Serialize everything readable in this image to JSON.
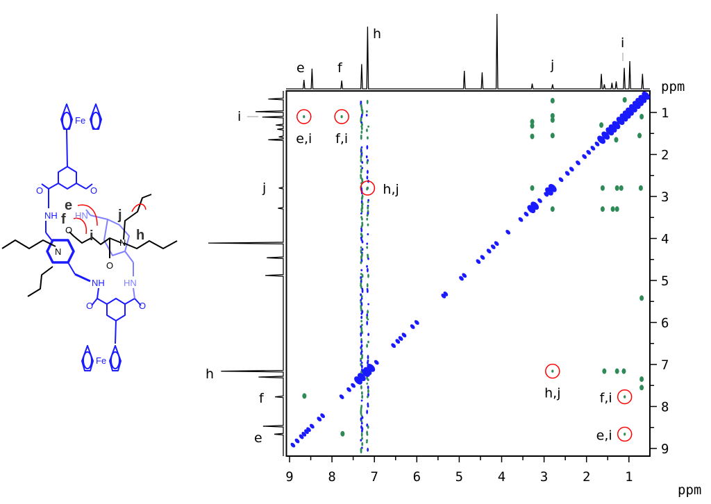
{
  "molecule": {
    "atoms": {
      "fe_top": "Fe",
      "fe_bottom": "Fe",
      "nh_left": "NH",
      "hn_mid": "HN",
      "nh_bottom": "NH",
      "hn_bottom": "HN",
      "n_pyr": "N",
      "n_right": "N",
      "o": "O"
    },
    "proton_labels": {
      "e": "e",
      "f": "f",
      "i": "i",
      "j": "j",
      "h": "h"
    },
    "colors": {
      "host": "#1a1aff",
      "host_light": "#8080ff",
      "guest": "#000000",
      "noe_arrow": "#ff0000"
    }
  },
  "chart_data": {
    "type": "heatmap",
    "subtype": "2D NMR (NOESY) contour plot",
    "x_axis": {
      "unit_label": "ppm",
      "range": [
        9.07,
        0.51
      ],
      "ticks": [
        9,
        8,
        7,
        6,
        5,
        4,
        3,
        2,
        1
      ],
      "reversed": true
    },
    "y_axis": {
      "unit_label": "ppm",
      "range": [
        0.49,
        9.15
      ],
      "ticks": [
        1,
        2,
        3,
        4,
        5,
        6,
        7,
        8,
        9
      ],
      "position": "right"
    },
    "grid": false,
    "colors": {
      "diagonal": "#1a1aff",
      "cross_peak": "#2e8b57",
      "annotation": "#ff0000",
      "spectrum": "#000000"
    },
    "projection_1d": {
      "peaks": [
        {
          "ppm": 8.66,
          "intensity": 0.12,
          "label": "e"
        },
        {
          "ppm": 8.47,
          "intensity": 0.27,
          "label": ""
        },
        {
          "ppm": 7.77,
          "intensity": 0.11,
          "label": "f"
        },
        {
          "ppm": 7.3,
          "intensity": 0.33,
          "label": ""
        },
        {
          "ppm": 7.16,
          "intensity": 0.83,
          "label": "h"
        },
        {
          "ppm": 4.88,
          "intensity": 0.24,
          "label": ""
        },
        {
          "ppm": 4.46,
          "intensity": 0.22,
          "label": ""
        },
        {
          "ppm": 4.11,
          "intensity": 1.0,
          "label": ""
        },
        {
          "ppm": 3.28,
          "intensity": 0.07,
          "label": ""
        },
        {
          "ppm": 2.8,
          "intensity": 0.06,
          "label": "j"
        },
        {
          "ppm": 1.65,
          "intensity": 0.2,
          "label": ""
        },
        {
          "ppm": 1.58,
          "intensity": 0.06,
          "label": ""
        },
        {
          "ppm": 1.4,
          "intensity": 0.08,
          "label": ""
        },
        {
          "ppm": 1.3,
          "intensity": 0.1,
          "label": ""
        },
        {
          "ppm": 1.11,
          "intensity": 0.28,
          "label": "i"
        },
        {
          "ppm": 0.98,
          "intensity": 0.37,
          "label": ""
        },
        {
          "ppm": 0.68,
          "intensity": 0.2,
          "label": ""
        }
      ]
    },
    "diagonal_peaks_ppm": [
      8.92,
      8.82,
      8.72,
      8.66,
      8.6,
      8.55,
      8.47,
      8.3,
      8.22,
      7.77,
      7.6,
      7.5,
      7.38,
      7.3,
      7.2,
      7.16,
      7.08,
      6.95,
      6.55,
      6.45,
      6.38,
      6.3,
      6.1,
      6.0,
      5.37,
      5.32,
      4.95,
      4.88,
      4.55,
      4.45,
      4.3,
      4.2,
      4.12,
      3.85,
      3.55,
      3.42,
      3.3,
      3.22,
      3.1,
      2.95,
      2.88,
      2.8,
      2.6,
      2.45,
      2.35,
      2.2,
      2.05,
      1.95,
      1.85,
      1.75,
      1.65,
      1.55,
      1.45,
      1.38,
      1.3,
      1.2,
      1.12,
      1.05,
      0.98,
      0.9,
      0.82,
      0.75,
      0.68,
      0.6
    ],
    "cross_peaks": [
      {
        "x": 8.66,
        "y": 1.1,
        "label": "e,i",
        "circled": true
      },
      {
        "x": 7.77,
        "y": 1.1,
        "label": "f,i",
        "circled": true
      },
      {
        "x": 7.16,
        "y": 2.8,
        "label": "h,j",
        "circled": true
      },
      {
        "x": 1.1,
        "y": 8.66,
        "label": "e,i",
        "circled": true
      },
      {
        "x": 1.1,
        "y": 7.77,
        "label": "f,i",
        "circled": true
      },
      {
        "x": 2.8,
        "y": 7.16,
        "label": "h,j",
        "circled": true
      },
      {
        "x": 8.65,
        "y": 7.75
      },
      {
        "x": 7.75,
        "y": 8.65
      },
      {
        "x": 2.8,
        "y": 0.72
      },
      {
        "x": 2.8,
        "y": 1.08
      },
      {
        "x": 2.8,
        "y": 1.18
      },
      {
        "x": 2.8,
        "y": 1.55
      },
      {
        "x": 3.28,
        "y": 1.22
      },
      {
        "x": 3.28,
        "y": 1.32
      },
      {
        "x": 3.28,
        "y": 1.57
      },
      {
        "x": 3.28,
        "y": 2.8
      },
      {
        "x": 2.8,
        "y": 3.3
      },
      {
        "x": 1.62,
        "y": 2.8
      },
      {
        "x": 1.28,
        "y": 2.8
      },
      {
        "x": 1.18,
        "y": 2.8
      },
      {
        "x": 0.72,
        "y": 2.8
      },
      {
        "x": 1.62,
        "y": 3.3
      },
      {
        "x": 1.38,
        "y": 3.3
      },
      {
        "x": 1.28,
        "y": 3.3
      },
      {
        "x": 1.58,
        "y": 7.16
      },
      {
        "x": 1.28,
        "y": 7.16
      },
      {
        "x": 1.12,
        "y": 7.16
      },
      {
        "x": 0.7,
        "y": 7.35
      },
      {
        "x": 0.7,
        "y": 5.42
      },
      {
        "x": 0.7,
        "y": 7.55
      },
      {
        "x": 1.65,
        "y": 1.3
      },
      {
        "x": 1.3,
        "y": 1.65
      },
      {
        "x": 0.7,
        "y": 1.1
      },
      {
        "x": 1.1,
        "y": 0.7
      },
      {
        "x": 0.75,
        "y": 1.55
      }
    ],
    "t1_noise_columns_ppm": [
      7.3,
      7.16
    ],
    "annotations": [
      "e,i",
      "f,i",
      "h,j"
    ]
  },
  "labels": {
    "ppm": "ppm"
  }
}
